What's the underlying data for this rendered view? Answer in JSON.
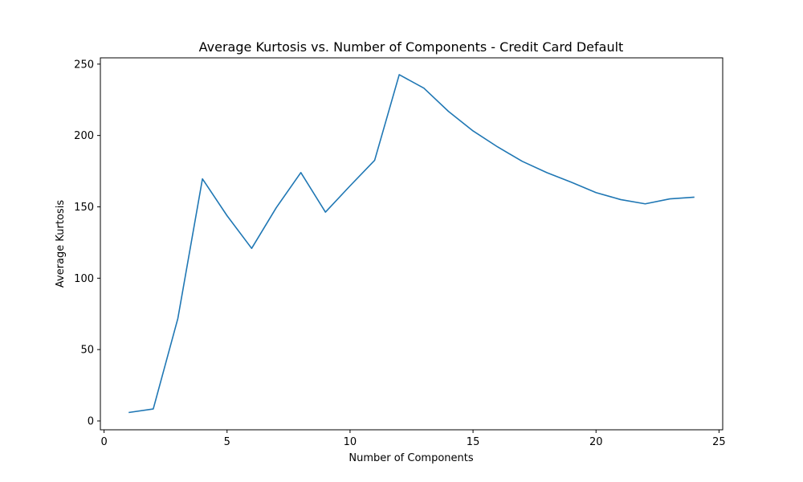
{
  "chart_data": {
    "type": "line",
    "title": "Average Kurtosis vs. Number of Components - Credit Card Default",
    "xlabel": "Number of Components",
    "ylabel": "Average Kurtosis",
    "xlim": [
      -0.15,
      25.15
    ],
    "ylim": [
      -6.2,
      254.4
    ],
    "x_ticks": [
      0,
      5,
      10,
      15,
      20,
      25
    ],
    "y_ticks": [
      0,
      50,
      100,
      150,
      200,
      250
    ],
    "grid": false,
    "series": [
      {
        "color": "#1f77b4",
        "x": [
          1,
          2,
          3,
          4,
          5,
          6,
          7,
          8,
          9,
          10,
          11,
          12,
          13,
          14,
          15,
          16,
          17,
          18,
          19,
          20,
          21,
          22,
          23,
          24
        ],
        "y": [
          5.9,
          8.4,
          71.8,
          169.6,
          143.8,
          120.9,
          149.4,
          174.0,
          146.3,
          164.7,
          182.6,
          242.6,
          233.2,
          216.9,
          203.2,
          192.0,
          181.9,
          174.0,
          167.2,
          160.0,
          155.1,
          152.1,
          155.6,
          156.8
        ]
      }
    ]
  }
}
